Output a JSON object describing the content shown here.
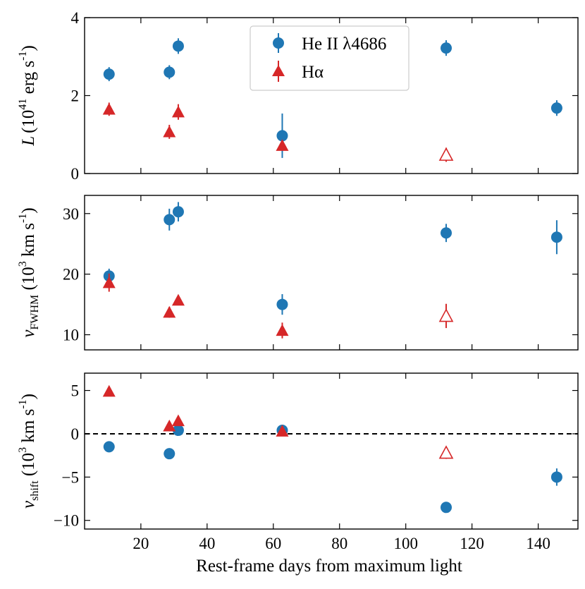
{
  "chart_data": {
    "type": "scatter",
    "xlabel": "Rest-frame days from maximum light",
    "xlim": [
      3,
      152
    ],
    "xticks": [
      20,
      40,
      60,
      80,
      100,
      120,
      140
    ],
    "xtick_labels": [
      "20",
      "40",
      "60",
      "80",
      "100",
      "120",
      "140"
    ],
    "legend": {
      "position": "top-center",
      "entries": [
        {
          "series": "He II λ4686",
          "label": "He II λ4686",
          "marker": "circle",
          "color": "#1f77b4"
        },
        {
          "series": "Hα",
          "label": "Hα",
          "marker": "triangle",
          "color": "#d62728"
        }
      ]
    },
    "panels": [
      {
        "id": "luminosity",
        "ylabel": {
          "main": "L",
          "paren_open": "(10",
          "exp": "41",
          "units": " erg s",
          "units_exp": "-1",
          "paren_close": ")"
        },
        "ylim": [
          0,
          4
        ],
        "yticks": [
          0,
          2,
          4
        ],
        "ytick_labels": [
          "0",
          "2",
          "4"
        ],
        "reference_line": null,
        "series": [
          {
            "name": "He II λ4686",
            "marker": "circle",
            "color": "#1f77b4",
            "points": [
              {
                "x": 10.4,
                "y": 2.55,
                "err": 0.18,
                "filled": true
              },
              {
                "x": 28.6,
                "y": 2.6,
                "err": 0.18,
                "filled": true
              },
              {
                "x": 31.3,
                "y": 3.27,
                "err": 0.2,
                "filled": true
              },
              {
                "x": 62.7,
                "y": 0.97,
                "err": 0.57,
                "filled": true
              },
              {
                "x": 112.2,
                "y": 3.22,
                "err": 0.2,
                "filled": true
              },
              {
                "x": 145.6,
                "y": 1.68,
                "err": 0.2,
                "filled": true
              }
            ]
          },
          {
            "name": "Hα",
            "marker": "triangle",
            "color": "#d62728",
            "points": [
              {
                "x": 10.4,
                "y": 1.65,
                "err": 0.17,
                "filled": true
              },
              {
                "x": 28.6,
                "y": 1.07,
                "err": 0.18,
                "filled": true
              },
              {
                "x": 31.3,
                "y": 1.58,
                "err": 0.2,
                "filled": true
              },
              {
                "x": 62.7,
                "y": 0.72,
                "err": 0.12,
                "filled": true
              },
              {
                "x": 112.2,
                "y": 0.48,
                "err": 0.18,
                "filled": false
              }
            ]
          }
        ]
      },
      {
        "id": "fwhm",
        "ylabel": {
          "main": "v",
          "sub": "FWHM",
          "paren_open": " (10",
          "exp": "3",
          "units": " km s",
          "units_exp": "-1",
          "paren_close": ")"
        },
        "ylim": [
          7.5,
          33
        ],
        "yticks": [
          10,
          20,
          30
        ],
        "ytick_labels": [
          "10",
          "20",
          "30"
        ],
        "reference_line": null,
        "series": [
          {
            "name": "He II λ4686",
            "marker": "circle",
            "color": "#1f77b4",
            "points": [
              {
                "x": 10.4,
                "y": 19.7,
                "err": 1.2,
                "filled": true
              },
              {
                "x": 28.6,
                "y": 29.0,
                "err": 1.8,
                "filled": true
              },
              {
                "x": 31.3,
                "y": 30.3,
                "err": 1.6,
                "filled": true
              },
              {
                "x": 62.7,
                "y": 15.0,
                "err": 1.7,
                "filled": true
              },
              {
                "x": 112.2,
                "y": 26.8,
                "err": 1.5,
                "filled": true
              },
              {
                "x": 145.6,
                "y": 26.1,
                "err": 2.8,
                "filled": true
              }
            ]
          },
          {
            "name": "Hα",
            "marker": "triangle",
            "color": "#d62728",
            "points": [
              {
                "x": 10.4,
                "y": 18.6,
                "err": 1.5,
                "filled": true
              },
              {
                "x": 28.6,
                "y": 13.7,
                "err": 0.9,
                "filled": true
              },
              {
                "x": 31.3,
                "y": 15.7,
                "err": 0.5,
                "filled": true
              },
              {
                "x": 62.7,
                "y": 10.7,
                "err": 1.3,
                "filled": true
              },
              {
                "x": 112.2,
                "y": 13.1,
                "err": 2.0,
                "filled": false
              }
            ]
          }
        ]
      },
      {
        "id": "shift",
        "ylabel": {
          "main": "v",
          "sub": "shift",
          "paren_open": " (10",
          "exp": "3",
          "units": " km s",
          "units_exp": "-1",
          "paren_close": ")"
        },
        "ylim": [
          -11,
          7
        ],
        "yticks": [
          -10,
          -5,
          0,
          5
        ],
        "ytick_labels": [
          "−10",
          "−5",
          "0",
          "5"
        ],
        "reference_line": {
          "y": 0,
          "style": "dashed",
          "color": "#000000"
        },
        "series": [
          {
            "name": "He II λ4686",
            "marker": "circle",
            "color": "#1f77b4",
            "points": [
              {
                "x": 10.4,
                "y": -1.5,
                "err": 0,
                "filled": true
              },
              {
                "x": 28.6,
                "y": -2.3,
                "err": 0,
                "filled": true
              },
              {
                "x": 31.3,
                "y": 0.4,
                "err": 0,
                "filled": true
              },
              {
                "x": 62.7,
                "y": 0.4,
                "err": 0,
                "filled": true
              },
              {
                "x": 112.2,
                "y": -8.5,
                "err": 0,
                "filled": true
              },
              {
                "x": 145.6,
                "y": -5.0,
                "err": 1.0,
                "filled": true
              }
            ]
          },
          {
            "name": "Hα",
            "marker": "triangle",
            "color": "#d62728",
            "points": [
              {
                "x": 10.4,
                "y": 4.9,
                "err": 0.3,
                "filled": true
              },
              {
                "x": 28.6,
                "y": 0.9,
                "err": 0.3,
                "filled": true
              },
              {
                "x": 31.3,
                "y": 1.5,
                "err": 0.3,
                "filled": true
              },
              {
                "x": 62.7,
                "y": 0.3,
                "err": 0.2,
                "filled": true
              },
              {
                "x": 112.2,
                "y": -2.2,
                "err": 0.7,
                "filled": false
              }
            ]
          }
        ]
      }
    ]
  }
}
